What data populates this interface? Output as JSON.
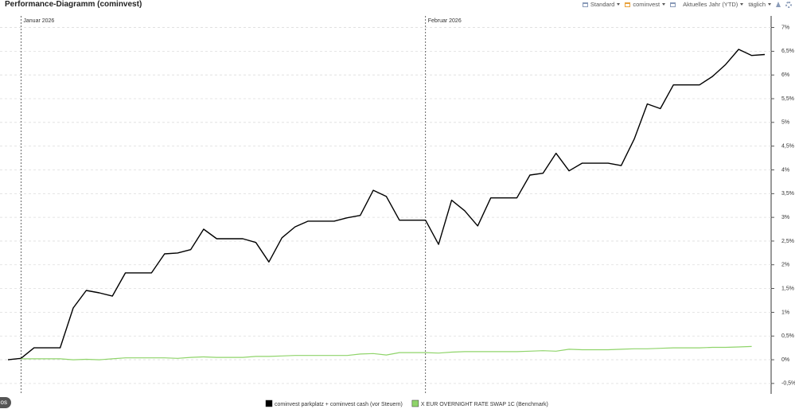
{
  "title": "Performance-Diagramm (cominvest)",
  "toolbar": {
    "items": [
      "Standard",
      "cominvest",
      "Aktuelles Jahr (YTD)",
      "täglich"
    ]
  },
  "corner_button": "os",
  "chart_data": {
    "type": "line",
    "categories": [
      null,
      "Januar 2026",
      null,
      null,
      null,
      null,
      null,
      null,
      null,
      null,
      null,
      null,
      null,
      null,
      null,
      null,
      null,
      null,
      null,
      null,
      null,
      null,
      null,
      null,
      null,
      null,
      null,
      null,
      null,
      null,
      null,
      null,
      "Februar 2026",
      null,
      null,
      null,
      null,
      null,
      null,
      null,
      null,
      null,
      null,
      null,
      null,
      null,
      null,
      null,
      null,
      null,
      null,
      null,
      null,
      null,
      null,
      null,
      null,
      null,
      null
    ],
    "series": [
      {
        "name": "cominvest parkplatz + cominvest cash (vor Steuern)",
        "color": "#000000",
        "values": [
          0,
          0.03,
          0.25,
          0.25,
          0.25,
          1.09,
          1.46,
          1.41,
          1.34,
          1.83,
          1.83,
          1.83,
          2.23,
          2.25,
          2.32,
          2.75,
          2.55,
          2.55,
          2.55,
          2.47,
          2.06,
          2.57,
          2.8,
          2.92,
          2.92,
          2.92,
          2.99,
          3.04,
          3.57,
          3.44,
          2.94,
          2.94,
          2.94,
          2.43,
          3.36,
          3.14,
          2.82,
          3.41,
          3.41,
          3.41,
          3.89,
          3.93,
          4.35,
          3.98,
          4.14,
          4.14,
          4.14,
          4.09,
          4.65,
          5.39,
          5.29,
          5.79,
          5.79,
          5.79,
          5.97,
          6.22,
          6.54,
          6.41,
          6.43
        ]
      },
      {
        "name": "X EUR OVERNIGHT RATE SWAP 1C (Benchmark)",
        "color": "#8fd46a",
        "values": [
          null,
          0.02,
          0.02,
          0.02,
          0.02,
          0.0,
          0.01,
          0.0,
          0.02,
          0.04,
          0.04,
          0.04,
          0.04,
          0.03,
          0.05,
          0.06,
          0.05,
          0.05,
          0.05,
          0.07,
          0.07,
          0.08,
          0.09,
          0.09,
          0.09,
          0.09,
          0.09,
          0.12,
          0.13,
          0.1,
          0.15,
          0.15,
          0.15,
          0.14,
          0.16,
          0.17,
          0.17,
          0.17,
          0.17,
          0.17,
          0.18,
          0.19,
          0.18,
          0.22,
          0.21,
          0.21,
          0.21,
          0.22,
          0.23,
          0.23,
          0.24,
          0.25,
          0.25,
          0.25,
          0.26,
          0.26,
          0.27,
          0.28,
          null
        ]
      }
    ],
    "ylim": [
      -0.72,
      7.16
    ],
    "yticks": [
      {
        "value": 7,
        "label": "7%"
      },
      {
        "value": 6.5,
        "label": "6,5%"
      },
      {
        "value": 6,
        "label": "6%"
      },
      {
        "value": 5.5,
        "label": "5,5%"
      },
      {
        "value": 5,
        "label": "5%"
      },
      {
        "value": 4.5,
        "label": "4,5%"
      },
      {
        "value": 4,
        "label": "4%"
      },
      {
        "value": 3.5,
        "label": "3,5%"
      },
      {
        "value": 3,
        "label": "3%"
      },
      {
        "value": 2.5,
        "label": "2,5%"
      },
      {
        "value": 2,
        "label": "2%"
      },
      {
        "value": 1.5,
        "label": "1,5%"
      },
      {
        "value": 1,
        "label": "1%"
      },
      {
        "value": 0.5,
        "label": "0,5%"
      },
      {
        "value": 0,
        "label": "0%"
      },
      {
        "value": -0.5,
        "label": "-0,5%"
      }
    ],
    "grid": true,
    "y_axis_side": "right",
    "legend_position": "bottom"
  }
}
